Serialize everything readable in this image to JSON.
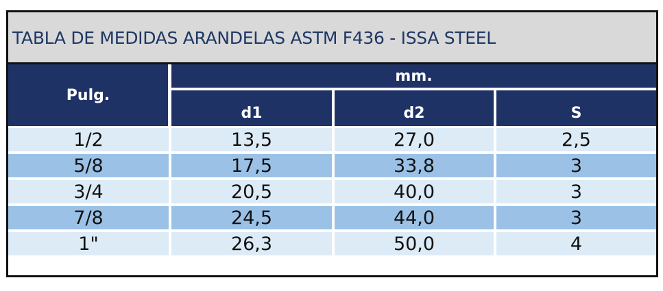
{
  "title": "TABLA DE MEDIDAS ARANDELAS ASTM F436 - ISSA STEEL",
  "headers": {
    "pulg": "Pulg.",
    "mm": "mm.",
    "d1": "d1",
    "d2": "d2",
    "s": "S"
  },
  "rows": [
    {
      "pulg": "1/2",
      "d1": "13,5",
      "d2": "27,0",
      "s": "2,5"
    },
    {
      "pulg": "5/8",
      "d1": "17,5",
      "d2": "33,8",
      "s": "3"
    },
    {
      "pulg": "3/4",
      "d1": "20,5",
      "d2": "40,0",
      "s": "3"
    },
    {
      "pulg": "7/8",
      "d1": "24,5",
      "d2": "44,0",
      "s": "3"
    },
    {
      "pulg": "1\"",
      "d1": "26,3",
      "d2": "50,0",
      "s": "4"
    }
  ],
  "colors": {
    "title_text": "#1f3864",
    "title_bg": "#d9d9d9",
    "header_bg": "#1f3266",
    "row_light": "#ddebf7",
    "row_dark": "#9bc2e6"
  }
}
